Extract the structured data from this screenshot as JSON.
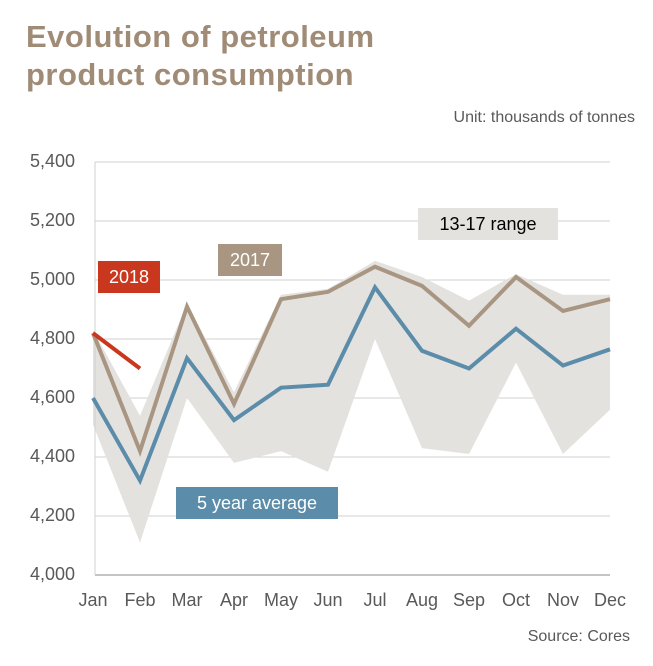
{
  "chart_data": {
    "type": "line",
    "title": "Evolution of petroleum product consumption",
    "subtitle": "Unit: thousands of tonnes",
    "source": "Source: Cores",
    "categories": [
      "Jan",
      "Feb",
      "Mar",
      "Apr",
      "May",
      "Jun",
      "Jul",
      "Aug",
      "Sep",
      "Oct",
      "Nov",
      "Dec"
    ],
    "range": {
      "name": "13-17 range",
      "color": "#e4e2df",
      "high": [
        4830,
        4540,
        4920,
        4620,
        4950,
        4970,
        5065,
        5010,
        4930,
        5020,
        4950,
        4950
      ],
      "low": [
        4510,
        4110,
        4600,
        4380,
        4420,
        4350,
        4800,
        4430,
        4410,
        4720,
        4410,
        4560
      ]
    },
    "series": [
      {
        "name": "2017",
        "color": "#a89682",
        "values": [
          4820,
          4420,
          4910,
          4580,
          4935,
          4960,
          5045,
          4980,
          4845,
          5010,
          4895,
          4935
        ]
      },
      {
        "name": "5 year average",
        "color": "#5b8ca9",
        "values": [
          4600,
          4320,
          4735,
          4525,
          4635,
          4645,
          4975,
          4760,
          4700,
          4835,
          4710,
          4765
        ]
      },
      {
        "name": "2018",
        "color": "#c9381e",
        "values": [
          4820,
          4700,
          null,
          null,
          null,
          null,
          null,
          null,
          null,
          null,
          null,
          null
        ]
      }
    ],
    "ylim": [
      4000,
      5400
    ],
    "yticks": [
      {
        "value": 4000,
        "label": "4,000"
      },
      {
        "value": 4200,
        "label": "4,200"
      },
      {
        "value": 4400,
        "label": "4,400"
      },
      {
        "value": 4600,
        "label": "4,600"
      },
      {
        "value": 4800,
        "label": "4,800"
      },
      {
        "value": 5000,
        "label": "5,000"
      },
      {
        "value": 5200,
        "label": "5,200"
      },
      {
        "value": 5400,
        "label": "5,400"
      }
    ],
    "grid": true
  }
}
